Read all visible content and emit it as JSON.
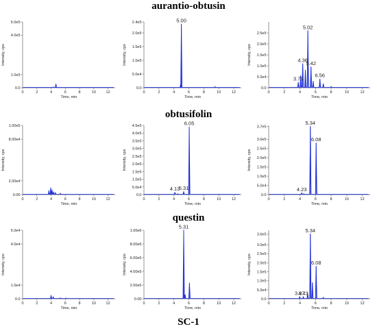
{
  "section_titles": [
    "aurantio-obtusin",
    "obtusifolin",
    "questin",
    "SC-1"
  ],
  "chart_data": [
    {
      "type": "line",
      "row": 0,
      "col": 0,
      "ylabel": "Intensity, cps",
      "xlabel": "Time, min",
      "xlim": [
        0,
        13
      ],
      "xticks": [
        0,
        2,
        4,
        6,
        8,
        10,
        12
      ],
      "ylim": [
        0,
        500000
      ],
      "yticks": [
        0,
        100000,
        400000,
        500000
      ],
      "ytick_labels": [
        "0.0",
        "1.0e5",
        "4.0e5",
        "5.0e5"
      ],
      "peaks": [
        {
          "x": 4.68,
          "y": 28000
        },
        {
          "x": 4.3,
          "y": 6000
        }
      ],
      "labels": [],
      "color": "#1f2fd6"
    },
    {
      "type": "line",
      "row": 0,
      "col": 1,
      "ylabel": "Intensity, cps",
      "xlabel": "Time, min",
      "xlim": [
        0,
        13
      ],
      "xticks": [
        0,
        2,
        4,
        6,
        8,
        10,
        12
      ],
      "ylim": [
        0,
        240000
      ],
      "yticks": [
        0,
        50000,
        100000,
        150000,
        200000,
        240000
      ],
      "ytick_labels": [
        "0.0",
        "5.0e4",
        "1.0e5",
        "1.5e5",
        "2.0e5",
        "2.4e5"
      ],
      "peaks": [
        {
          "x": 5.0,
          "y": 232000
        },
        {
          "x": 4.9,
          "y": 12000
        },
        {
          "x": 9.5,
          "y": 4000
        }
      ],
      "labels": [
        {
          "text": "5.00",
          "x": 5.0,
          "y": 232000
        }
      ],
      "color": "#1f2fd6"
    },
    {
      "type": "line",
      "row": 0,
      "col": 2,
      "ylabel": "Intensity, cps",
      "xlabel": "Time, min",
      "xlim": [
        0,
        13
      ],
      "xticks": [
        0,
        2,
        4,
        6,
        8,
        10,
        12
      ],
      "ylim": [
        0,
        300000
      ],
      "yticks": [
        0,
        50000,
        100000,
        150000,
        200000,
        250000
      ],
      "ytick_labels": [
        "0.0",
        "5.0e4",
        "1.0e5",
        "1.5e5",
        "2.0e5",
        "2.5e5"
      ],
      "peaks": [
        {
          "x": 3.79,
          "y": 25000
        },
        {
          "x": 4.1,
          "y": 55000
        },
        {
          "x": 4.36,
          "y": 110000
        },
        {
          "x": 4.7,
          "y": 80000
        },
        {
          "x": 5.02,
          "y": 260000
        },
        {
          "x": 5.42,
          "y": 95000
        },
        {
          "x": 5.7,
          "y": 30000
        },
        {
          "x": 6.56,
          "y": 40000
        },
        {
          "x": 7.0,
          "y": 18000
        },
        {
          "x": 8.0,
          "y": 6000
        }
      ],
      "labels": [
        {
          "text": "3.79",
          "x": 3.79,
          "y": 25000
        },
        {
          "text": "4.36",
          "x": 4.36,
          "y": 110000
        },
        {
          "text": "5.02",
          "x": 5.02,
          "y": 260000
        },
        {
          "text": "5.42",
          "x": 5.42,
          "y": 95000
        },
        {
          "text": "6.56",
          "x": 6.56,
          "y": 40000
        }
      ],
      "color": "#1f2fd6"
    },
    {
      "type": "line",
      "row": 1,
      "col": 0,
      "ylabel": "Intensity, cps",
      "xlabel": "Time, min",
      "xlim": [
        0,
        13
      ],
      "xticks": [
        0,
        2,
        4,
        6,
        8,
        10,
        12
      ],
      "ylim": [
        0,
        100000
      ],
      "yticks": [
        0,
        20000,
        80000,
        100000
      ],
      "ytick_labels": [
        "0.00",
        "2.00e4",
        "8.00e4",
        "1.00e5"
      ],
      "peaks": [
        {
          "x": 3.7,
          "y": 6000
        },
        {
          "x": 3.95,
          "y": 10000
        },
        {
          "x": 4.13,
          "y": 7000
        },
        {
          "x": 4.35,
          "y": 4000
        },
        {
          "x": 4.6,
          "y": 3000
        },
        {
          "x": 5.3,
          "y": 2000
        }
      ],
      "labels": [],
      "color": "#1f2fd6"
    },
    {
      "type": "line",
      "row": 1,
      "col": 1,
      "ylabel": "Intensity, cps",
      "xlabel": "Time, min",
      "xlim": [
        0,
        13
      ],
      "xticks": [
        0,
        2,
        4,
        6,
        8,
        10,
        12
      ],
      "ylim": [
        0,
        450000
      ],
      "yticks": [
        0,
        50000,
        100000,
        150000,
        200000,
        250000,
        300000,
        350000,
        400000,
        450000
      ],
      "ytick_labels": [
        "0.0",
        "5.0e4",
        "1.0e5",
        "1.5e5",
        "2.0e5",
        "2.5e5",
        "3.0e5",
        "3.5e5",
        "4.0e5",
        "4.5e5"
      ],
      "peaks": [
        {
          "x": 4.13,
          "y": 15000
        },
        {
          "x": 4.5,
          "y": 6000
        },
        {
          "x": 5.31,
          "y": 20000
        },
        {
          "x": 6.05,
          "y": 440000
        }
      ],
      "labels": [
        {
          "text": "4.13",
          "x": 4.13,
          "y": 15000
        },
        {
          "text": "5.31",
          "x": 5.31,
          "y": 20000
        },
        {
          "text": "6.05",
          "x": 6.05,
          "y": 440000
        }
      ],
      "color": "#1f2fd6"
    },
    {
      "type": "line",
      "row": 1,
      "col": 2,
      "ylabel": "Intensity, cps",
      "xlabel": "Time, min",
      "xlim": [
        0,
        13
      ],
      "xticks": [
        0,
        2,
        4,
        6,
        8,
        10,
        12
      ],
      "ylim": [
        0,
        375000
      ],
      "yticks": [
        0,
        50000,
        100000,
        150000,
        200000,
        250000,
        300000,
        370000
      ],
      "ytick_labels": [
        "0.0",
        "5.0e4",
        "1.0e5",
        "1.5e5",
        "2.0e5",
        "2.5e5",
        "3.0e5",
        "3.7e5"
      ],
      "peaks": [
        {
          "x": 4.23,
          "y": 10000
        },
        {
          "x": 4.5,
          "y": 5000
        },
        {
          "x": 5.34,
          "y": 370000
        },
        {
          "x": 6.08,
          "y": 280000
        }
      ],
      "labels": [
        {
          "text": "4.23",
          "x": 4.23,
          "y": 10000
        },
        {
          "text": "5.34",
          "x": 5.34,
          "y": 370000
        },
        {
          "text": "6.08",
          "x": 6.08,
          "y": 280000
        }
      ],
      "color": "#1f2fd6"
    },
    {
      "type": "line",
      "row": 2,
      "col": 0,
      "ylabel": "Intensity, cps",
      "xlabel": "Time, min",
      "xlim": [
        0,
        13
      ],
      "xticks": [
        0,
        2,
        4,
        6,
        8,
        10,
        12
      ],
      "ylim": [
        0,
        50000
      ],
      "yticks": [
        0,
        10000,
        40000,
        50000
      ],
      "ytick_labels": [
        "0.0",
        "1.0e4",
        "4.0e4",
        "5.0e4"
      ],
      "peaks": [
        {
          "x": 4.0,
          "y": 2500
        },
        {
          "x": 4.3,
          "y": 1500
        },
        {
          "x": 5.3,
          "y": 700
        },
        {
          "x": 6.1,
          "y": 500
        },
        {
          "x": 9.8,
          "y": 300
        }
      ],
      "labels": [],
      "color": "#1f2fd6"
    },
    {
      "type": "line",
      "row": 2,
      "col": 1,
      "ylabel": "Intensity, cps",
      "xlabel": "Time, min",
      "xlim": [
        0,
        13
      ],
      "xticks": [
        0,
        2,
        4,
        6,
        8,
        10,
        12
      ],
      "ylim": [
        0,
        1000000
      ],
      "yticks": [
        0,
        200000,
        400000,
        600000,
        800000,
        1000000
      ],
      "ytick_labels": [
        "0.00",
        "2.00e5",
        "4.00e5",
        "6.00e5",
        "8.00e5",
        "1.00e6"
      ],
      "peaks": [
        {
          "x": 5.31,
          "y": 1000000
        },
        {
          "x": 5.5,
          "y": 60000
        },
        {
          "x": 6.08,
          "y": 230000
        }
      ],
      "labels": [
        {
          "text": "5.31",
          "x": 5.31,
          "y": 1000000
        }
      ],
      "color": "#1f2fd6"
    },
    {
      "type": "line",
      "row": 2,
      "col": 2,
      "ylabel": "Intensity, cps",
      "xlabel": "Time, min",
      "xlim": [
        0,
        13
      ],
      "xticks": [
        0,
        2,
        4,
        6,
        8,
        10,
        12
      ],
      "ylim": [
        0,
        380000
      ],
      "yticks": [
        0,
        50000,
        100000,
        150000,
        200000,
        250000,
        300000,
        360000
      ],
      "ytick_labels": [
        "0.0",
        "5.0e4",
        "1.0e5",
        "1.5e5",
        "2.0e5",
        "2.5e5",
        "3.0e5",
        "3.6e5"
      ],
      "peaks": [
        {
          "x": 3.97,
          "y": 12000
        },
        {
          "x": 4.43,
          "y": 12000
        },
        {
          "x": 5.0,
          "y": 30000
        },
        {
          "x": 5.34,
          "y": 360000
        },
        {
          "x": 5.6,
          "y": 90000
        },
        {
          "x": 6.08,
          "y": 180000
        },
        {
          "x": 7.0,
          "y": 8000
        }
      ],
      "labels": [
        {
          "text": "3.97",
          "x": 3.97,
          "y": 12000
        },
        {
          "text": "4.43",
          "x": 4.43,
          "y": 12000
        },
        {
          "text": "5.34",
          "x": 5.34,
          "y": 360000
        },
        {
          "text": "6.08",
          "x": 6.08,
          "y": 180000
        }
      ],
      "color": "#1f2fd6"
    }
  ]
}
